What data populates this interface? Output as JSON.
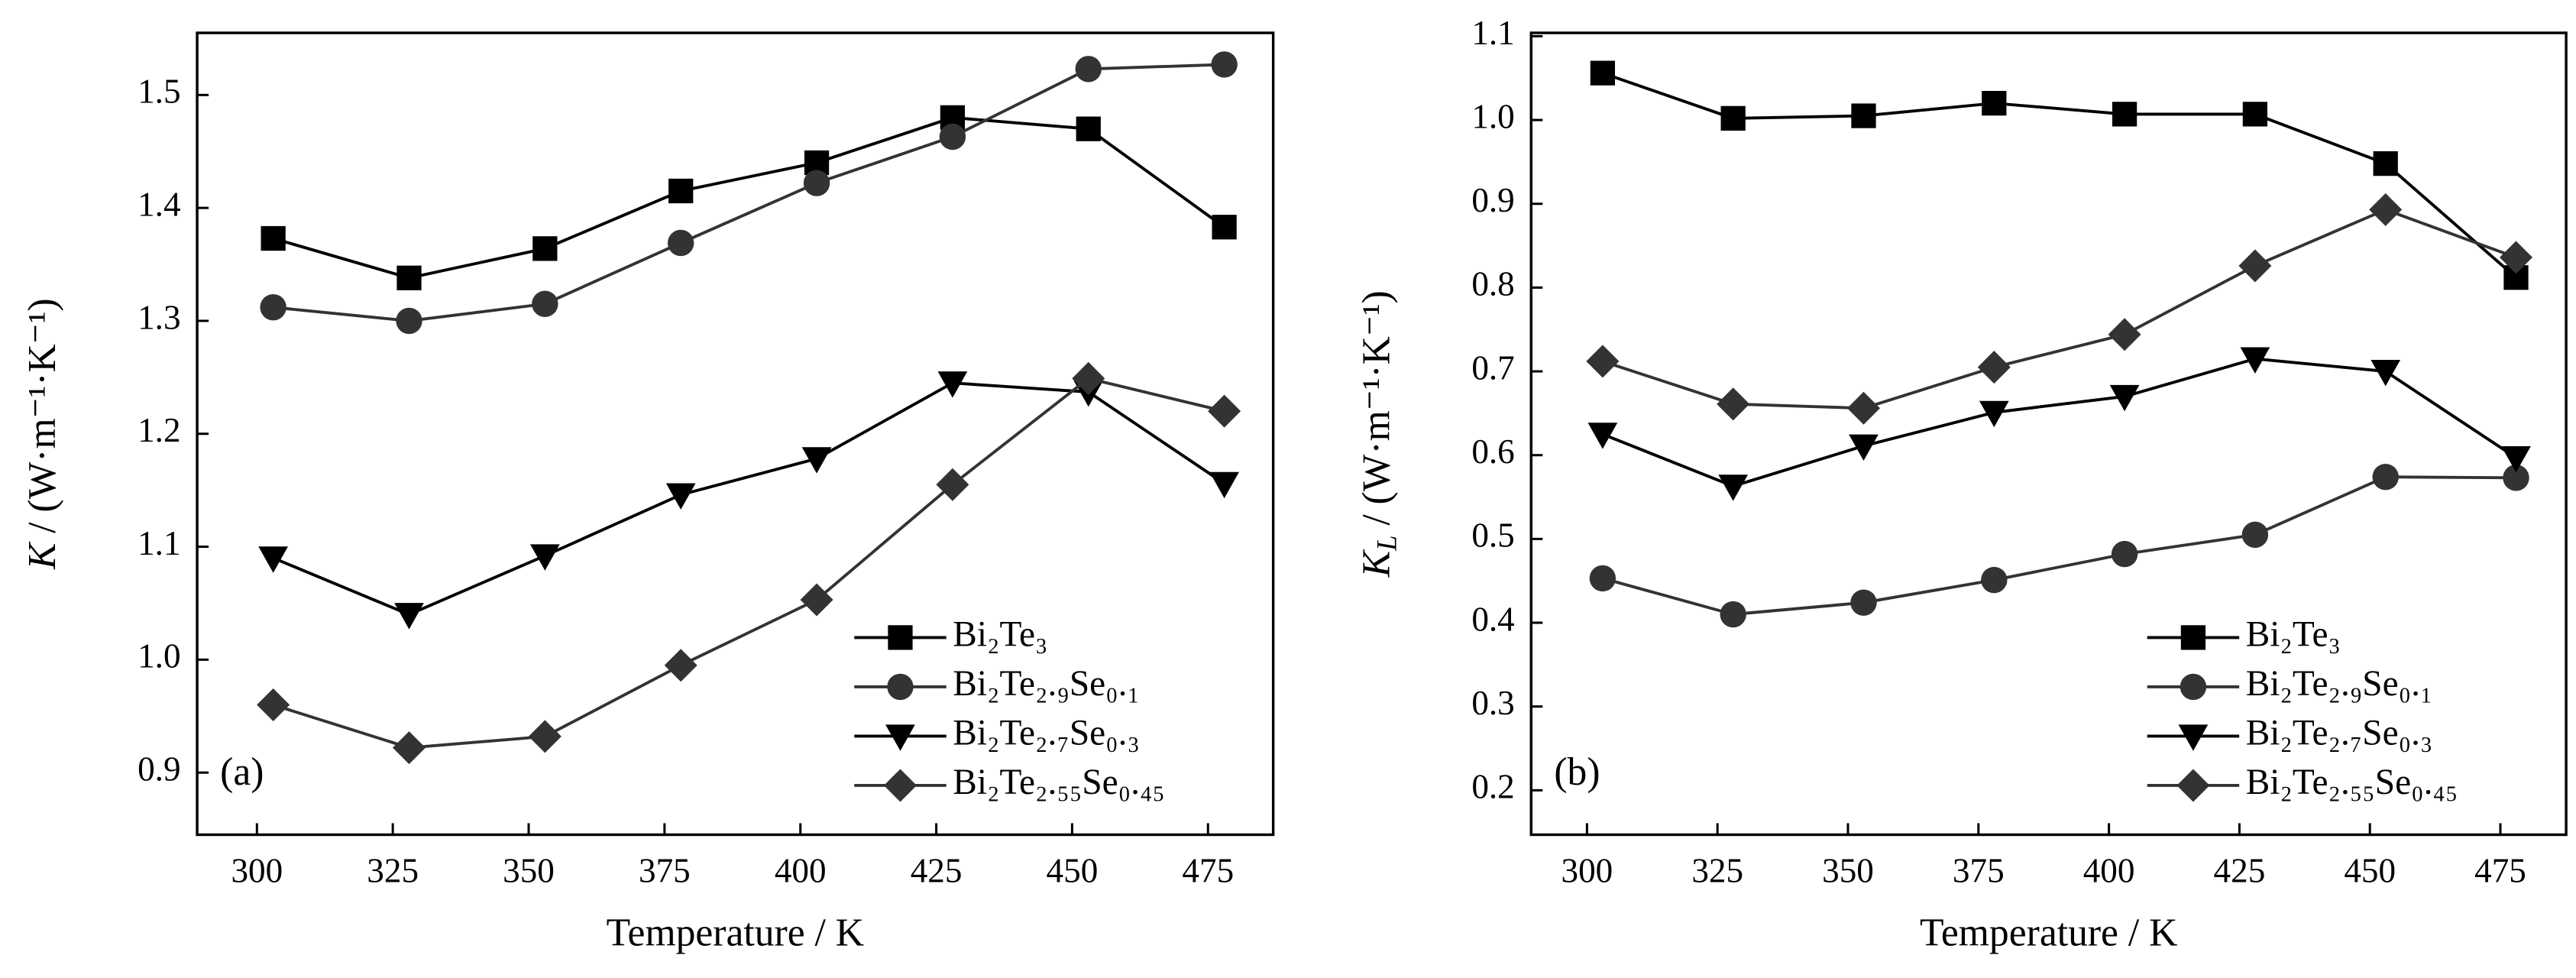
{
  "chart_data": [
    {
      "type": "line",
      "panel_label": "(a)",
      "x_label": "Temperature / K",
      "y_label": {
        "symbol": "K",
        "unit": " / (W·m⁻¹·K⁻¹)"
      },
      "x": [
        303,
        328,
        353,
        378,
        403,
        428,
        453,
        478
      ],
      "xlim": [
        289,
        487
      ],
      "xticks": [
        300,
        325,
        350,
        375,
        400,
        425,
        450,
        475
      ],
      "ylim": [
        0.845,
        1.555
      ],
      "yticks": [
        {
          "value": 0.9,
          "label": "0.9"
        },
        {
          "value": 1.0,
          "label": "1.0"
        },
        {
          "value": 1.1,
          "label": "1.1"
        },
        {
          "value": 1.2,
          "label": "1.2"
        },
        {
          "value": 1.3,
          "label": "1.3"
        },
        {
          "value": 1.4,
          "label": "1.4"
        },
        {
          "value": 1.5,
          "label": "1.5"
        }
      ],
      "legend": "lower right",
      "series": [
        {
          "name": "Bi₂Te₃",
          "marker": "square",
          "color": "#000000",
          "values": [
            1.373,
            1.338,
            1.364,
            1.415,
            1.44,
            1.48,
            1.47,
            1.383
          ]
        },
        {
          "name": "Bi₂Te₂.₉Se₀.₁",
          "marker": "circle",
          "color": "#333333",
          "values": [
            1.312,
            1.3,
            1.315,
            1.369,
            1.422,
            1.463,
            1.523,
            1.527
          ]
        },
        {
          "name": "Bi₂Te₂.₇Se₀.₃",
          "marker": "triangle-down",
          "color": "#000000",
          "values": [
            1.09,
            1.04,
            1.092,
            1.146,
            1.178,
            1.245,
            1.237,
            1.156
          ]
        },
        {
          "name": "Bi₂Te₂.₅₅Se₀.₄₅",
          "marker": "diamond",
          "color": "#333333",
          "values": [
            0.96,
            0.922,
            0.932,
            0.995,
            1.053,
            1.155,
            1.249,
            1.22
          ]
        }
      ]
    },
    {
      "type": "line",
      "panel_label": "(b)",
      "x_label": "Temperature / K",
      "y_label": {
        "symbol": "K",
        "subscript": "L",
        "unit": " / (W·m⁻¹·K⁻¹)"
      },
      "x": [
        303,
        328,
        353,
        378,
        403,
        428,
        453,
        478
      ],
      "xlim": [
        289.3,
        487.6
      ],
      "xticks": [
        300,
        325,
        350,
        375,
        400,
        425,
        450,
        475
      ],
      "ylim": [
        0.147,
        1.104
      ],
      "yticks": [
        0.2,
        0.3,
        0.4,
        0.5,
        0.6,
        0.7,
        0.8,
        0.9,
        {
          "value": 1.0,
          "label": "1.0"
        },
        1.1
      ],
      "legend": "lower right",
      "series": [
        {
          "name": "Bi₂Te₃",
          "marker": "square",
          "color": "#000000",
          "values": [
            1.056,
            1.002,
            1.005,
            1.02,
            1.007,
            1.007,
            0.948,
            0.812
          ]
        },
        {
          "name": "Bi₂Te₂.₉Se₀.₁",
          "marker": "circle",
          "color": "#333333",
          "values": [
            0.453,
            0.41,
            0.424,
            0.451,
            0.482,
            0.505,
            0.574,
            0.573
          ]
        },
        {
          "name": "Bi₂Te₂.₇Se₀.₃",
          "marker": "triangle-down",
          "color": "#000000",
          "values": [
            0.625,
            0.563,
            0.611,
            0.651,
            0.67,
            0.715,
            0.7,
            0.597
          ]
        },
        {
          "name": "Bi₂Te₂.₅₅Se₀.₄₅",
          "marker": "diamond",
          "color": "#333333",
          "values": [
            0.712,
            0.661,
            0.656,
            0.705,
            0.744,
            0.826,
            0.893,
            0.836
          ]
        }
      ]
    }
  ]
}
